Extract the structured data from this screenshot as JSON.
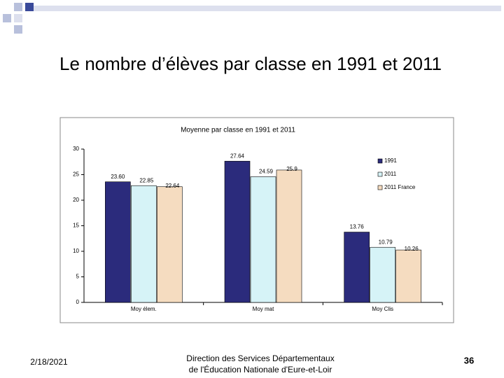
{
  "slide": {
    "title": "Le nombre d’élèves par classe en 1991 et 2011",
    "date": "2/18/2021",
    "footer": [
      "Direction des Services Départementaux",
      "de l'Éducation Nationale d'Eure-et-Loir"
    ],
    "page_number": "36"
  },
  "chart_data": {
    "type": "bar",
    "title": "Moyenne par classe en 1991 et 2011",
    "categories": [
      "Moy élem.",
      "Moy mat",
      "Moy Clis"
    ],
    "series": [
      {
        "name": "1991",
        "color": "#2b2b7c",
        "values": [
          23.6,
          27.64,
          13.76
        ],
        "value_labels": [
          "23.60",
          "27.64",
          "13.76"
        ]
      },
      {
        "name": "2011",
        "color": "#d6f3f7",
        "values": [
          22.85,
          24.59,
          10.79
        ]
      },
      {
        "name": "2011 France",
        "color": "#f5dcc0",
        "values": [
          22.64,
          25.9,
          10.26
        ]
      }
    ],
    "ylim": [
      0,
      30
    ],
    "yticks": [
      0,
      5,
      10,
      15,
      20,
      25,
      30
    ],
    "legend": "upper-right"
  }
}
